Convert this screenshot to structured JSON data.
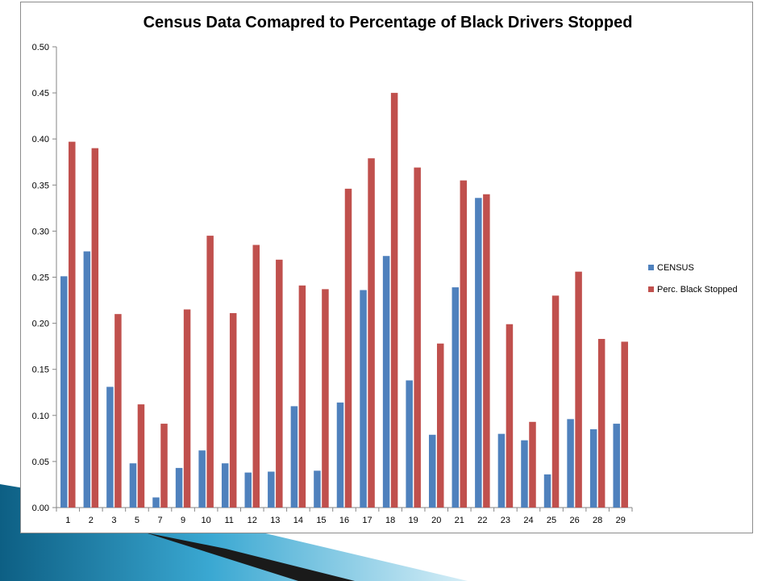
{
  "chart_data": {
    "type": "bar",
    "title": "Census Data Comapred to Percentage of Black Drivers Stopped",
    "xlabel": "",
    "ylabel": "",
    "ylim": [
      0,
      0.5
    ],
    "yticks": [
      "0.00",
      "0.05",
      "0.10",
      "0.15",
      "0.20",
      "0.25",
      "0.30",
      "0.35",
      "0.40",
      "0.45",
      "0.50"
    ],
    "grid": false,
    "legend_position": "right",
    "categories": [
      "1",
      "2",
      "3",
      "5",
      "7",
      "9",
      "10",
      "11",
      "12",
      "13",
      "14",
      "15",
      "16",
      "17",
      "18",
      "19",
      "20",
      "21",
      "22",
      "23",
      "24",
      "25",
      "26",
      "28",
      "29"
    ],
    "series": [
      {
        "name": "CENSUS",
        "color": "#4f81bd",
        "values": [
          0.251,
          0.278,
          0.131,
          0.048,
          0.011,
          0.043,
          0.062,
          0.048,
          0.038,
          0.039,
          0.11,
          0.04,
          0.114,
          0.236,
          0.273,
          0.138,
          0.079,
          0.239,
          0.336,
          0.08,
          0.073,
          0.036,
          0.096,
          0.085,
          0.091
        ]
      },
      {
        "name": "Perc. Black Stopped",
        "color": "#c0504d",
        "values": [
          0.397,
          0.39,
          0.21,
          0.112,
          0.091,
          0.215,
          0.295,
          0.211,
          0.285,
          0.269,
          0.241,
          0.237,
          0.346,
          0.379,
          0.45,
          0.369,
          0.178,
          0.355,
          0.34,
          0.199,
          0.093,
          0.23,
          0.256,
          0.183,
          0.18
        ]
      }
    ]
  },
  "theme": {
    "slide_accent": "#2a8fb8",
    "slide_dark": "#1a1a1a"
  }
}
